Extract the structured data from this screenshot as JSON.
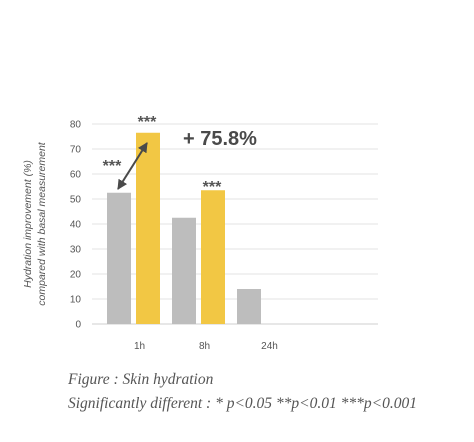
{
  "chart_data": {
    "type": "bar",
    "categories": [
      "1h",
      "8h",
      "24h"
    ],
    "series": [
      {
        "color": "#bdbdbd",
        "values": [
          52.5,
          42.5,
          14
        ]
      },
      {
        "color": "#f2c744",
        "values": [
          76.5,
          53.5,
          null
        ]
      }
    ],
    "ylabel_line1": "Hydration improvement (%)",
    "ylabel_line2": "compared with basal measurement",
    "ylim": [
      0,
      80
    ],
    "yticks": [
      0,
      10,
      20,
      30,
      40,
      50,
      60,
      70,
      80
    ],
    "grid": true,
    "annotations": {
      "sig_gray_1h": "***",
      "sig_yellow_1h": "***",
      "sig_yellow_8h": "***",
      "delta": "+ 75.8%"
    }
  },
  "caption": {
    "line1": "Figure : Skin hydration",
    "line2": "Significantly different : * p<0.05 **p<0.01 ***p<0.001"
  }
}
